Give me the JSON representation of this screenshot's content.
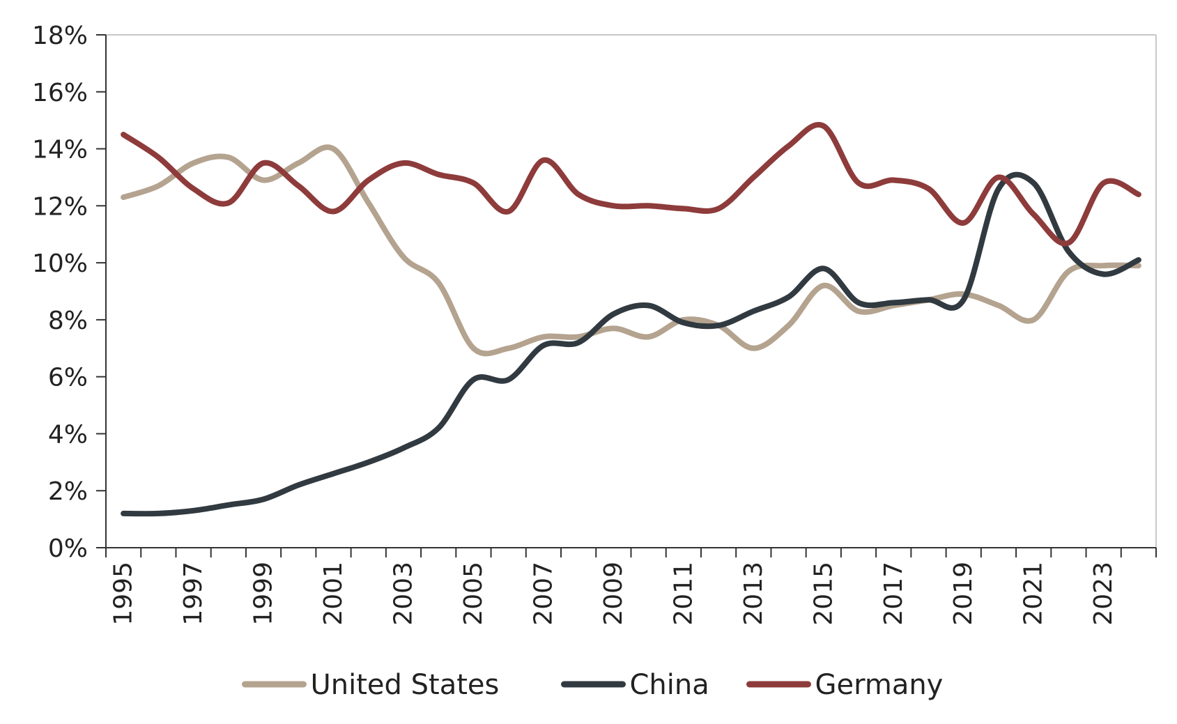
{
  "chart_data": {
    "type": "line",
    "title": "",
    "xlabel": "",
    "ylabel": "",
    "x": [
      1995,
      1996,
      1997,
      1998,
      1999,
      2000,
      2001,
      2002,
      2003,
      2004,
      2005,
      2006,
      2007,
      2008,
      2009,
      2010,
      2011,
      2012,
      2013,
      2014,
      2015,
      2016,
      2017,
      2018,
      2019,
      2020,
      2021,
      2022,
      2023,
      2024
    ],
    "xlim": [
      1994.5,
      2024.5
    ],
    "ylim": [
      0,
      18
    ],
    "x_ticks": [
      "1995",
      "1997",
      "1999",
      "2001",
      "2003",
      "2005",
      "2007",
      "2009",
      "2011",
      "2013",
      "2015",
      "2017",
      "2019",
      "2021",
      "2023"
    ],
    "y_ticks": [
      "0%",
      "2%",
      "4%",
      "6%",
      "8%",
      "10%",
      "12%",
      "14%",
      "16%",
      "18%"
    ],
    "grid": false,
    "legend_position": "bottom",
    "series": [
      {
        "name": "United States",
        "color": "#b4a38f",
        "values": [
          12.3,
          12.7,
          13.5,
          13.7,
          12.9,
          13.5,
          14.0,
          12.1,
          10.2,
          9.3,
          7.0,
          7.0,
          7.4,
          7.4,
          7.7,
          7.4,
          8.0,
          7.8,
          7.0,
          7.8,
          9.2,
          8.3,
          8.5,
          8.7,
          8.9,
          8.5,
          8.0,
          9.7,
          9.9,
          9.9
        ]
      },
      {
        "name": "China",
        "color": "#313a40",
        "values": [
          1.2,
          1.2,
          1.3,
          1.5,
          1.7,
          2.2,
          2.6,
          3.0,
          3.5,
          4.2,
          5.9,
          5.9,
          7.1,
          7.2,
          8.2,
          8.5,
          7.9,
          7.8,
          8.3,
          8.8,
          9.8,
          8.6,
          8.6,
          8.7,
          8.7,
          12.6,
          12.8,
          10.4,
          9.6,
          10.1
        ]
      },
      {
        "name": "Germany",
        "color": "#8e3b3b",
        "values": [
          14.5,
          13.7,
          12.6,
          12.1,
          13.5,
          12.7,
          11.8,
          12.9,
          13.5,
          13.1,
          12.8,
          11.8,
          13.6,
          12.4,
          12.0,
          12.0,
          11.9,
          11.9,
          13.0,
          14.1,
          14.8,
          12.8,
          12.9,
          12.6,
          11.4,
          13.0,
          11.7,
          10.7,
          12.8,
          12.4
        ]
      }
    ]
  }
}
